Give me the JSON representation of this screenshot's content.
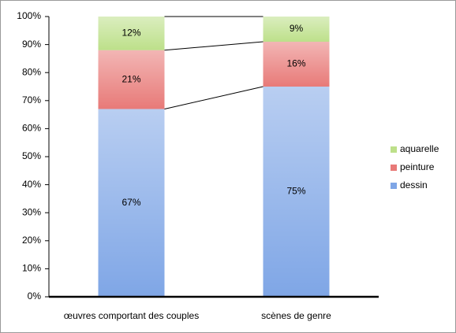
{
  "chart_data": {
    "type": "stacked-bar-100",
    "categories": [
      "œuvres comportant des couples",
      "scènes de genre"
    ],
    "series": [
      {
        "name": "dessin",
        "color": "#7fa6e6",
        "values": [
          67,
          75
        ],
        "value_labels": [
          "67%",
          "75%"
        ]
      },
      {
        "name": "peinture",
        "color": "#e87a78",
        "values": [
          21,
          16
        ],
        "value_labels": [
          "21%",
          "16%"
        ]
      },
      {
        "name": "aquarelle",
        "color": "#bde08a",
        "values": [
          12,
          9
        ],
        "value_labels": [
          "12%",
          "9%"
        ]
      }
    ],
    "ylim": [
      0,
      100
    ],
    "yticks": [
      {
        "value": 0,
        "label": "0%"
      },
      {
        "value": 10,
        "label": "10%"
      },
      {
        "value": 20,
        "label": "20%"
      },
      {
        "value": 30,
        "label": "30%"
      },
      {
        "value": 40,
        "label": "40%"
      },
      {
        "value": 50,
        "label": "50%"
      },
      {
        "value": 60,
        "label": "60%"
      },
      {
        "value": 70,
        "label": "70%"
      },
      {
        "value": 80,
        "label": "80%"
      },
      {
        "value": 90,
        "label": "90%"
      },
      {
        "value": 100,
        "label": "100%"
      }
    ],
    "legend": "right"
  }
}
